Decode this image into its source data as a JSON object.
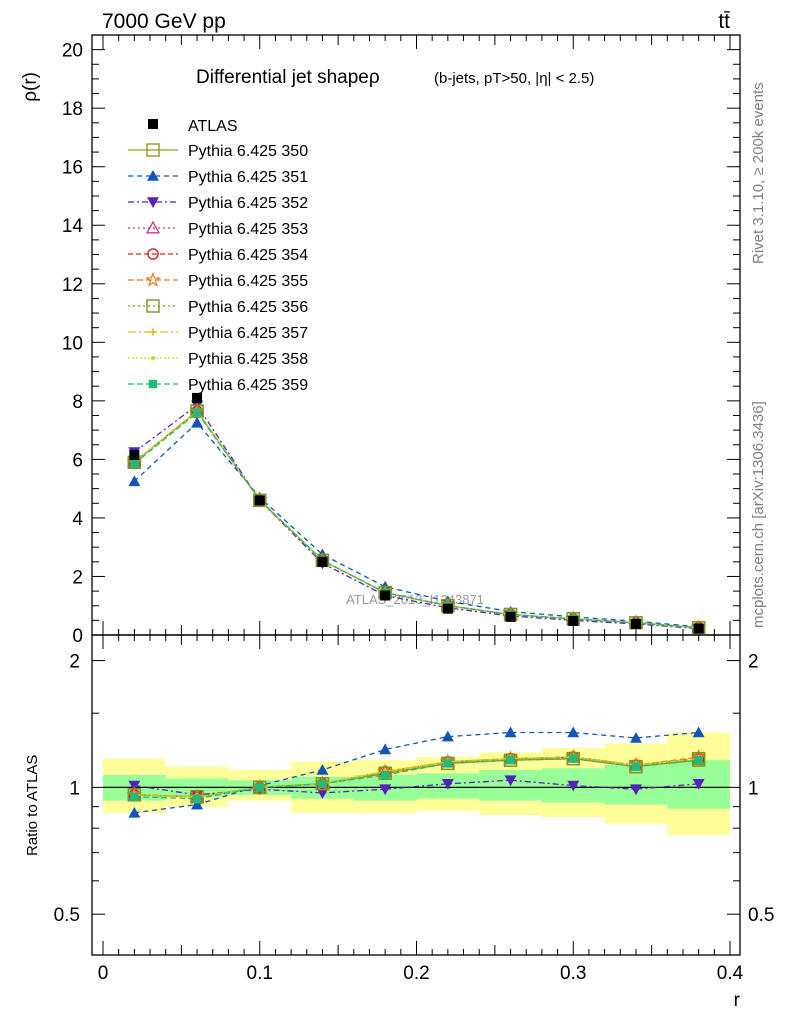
{
  "header": {
    "left": "7000 GeV pp",
    "right": "tt̄"
  },
  "side_labels": {
    "rivet": "Rivet 3.1.10, ≥ 200k events",
    "source": "mcplots.cern.ch [arXiv:1306.3436]"
  },
  "chart_data": [
    {
      "type": "line",
      "title": "Differential jet shapeρ",
      "title_detail": "(b-jets, pT>50, |η| < 2.5)",
      "ylabel": "ρ(r)",
      "xlabel": "r",
      "watermark": "ATLAS_2013_I1243871",
      "xlim": [
        0,
        0.4
      ],
      "ylim": [
        0,
        20.5
      ],
      "x_ticks": [
        "0",
        "0.1",
        "0.2",
        "0.3",
        "0.4"
      ],
      "y_ticks": [
        "0",
        "2",
        "4",
        "6",
        "8",
        "10",
        "12",
        "14",
        "16",
        "18",
        "20"
      ],
      "legend_position": "top-left",
      "x": [
        0.02,
        0.06,
        0.1,
        0.14,
        0.18,
        0.22,
        0.26,
        0.3,
        0.34,
        0.38
      ],
      "data": {
        "name": "ATLAS",
        "values": [
          6.15,
          8.1,
          4.6,
          2.5,
          1.35,
          0.9,
          0.62,
          0.48,
          0.38,
          0.22
        ]
      },
      "series": [
        {
          "name": "Pythia 6.425 350",
          "color": "#999922",
          "values": [
            5.9,
            7.65,
            4.6,
            2.55,
            1.45,
            1.0,
            0.7,
            0.55,
            0.42,
            0.25
          ]
        },
        {
          "name": "Pythia 6.425 351",
          "color": "#1155bb",
          "values": [
            5.25,
            7.25,
            4.7,
            2.75,
            1.65,
            1.15,
            0.8,
            0.62,
            0.47,
            0.28
          ]
        },
        {
          "name": "Pythia 6.425 352",
          "color": "#5522bb",
          "values": [
            6.25,
            7.85,
            4.6,
            2.45,
            1.35,
            0.93,
            0.65,
            0.5,
            0.38,
            0.22
          ]
        },
        {
          "name": "Pythia 6.425 353",
          "color": "#cc3399",
          "values": [
            5.9,
            7.65,
            4.6,
            2.55,
            1.45,
            1.0,
            0.7,
            0.55,
            0.42,
            0.25
          ]
        },
        {
          "name": "Pythia 6.425 354",
          "color": "#dd2222",
          "values": [
            5.9,
            7.65,
            4.6,
            2.55,
            1.45,
            1.0,
            0.7,
            0.55,
            0.42,
            0.25
          ]
        },
        {
          "name": "Pythia 6.425 355",
          "color": "#ee7722",
          "values": [
            5.9,
            7.65,
            4.6,
            2.55,
            1.45,
            1.0,
            0.7,
            0.55,
            0.42,
            0.25
          ]
        },
        {
          "name": "Pythia 6.425 356",
          "color": "#779922",
          "values": [
            5.9,
            7.65,
            4.6,
            2.55,
            1.45,
            1.0,
            0.7,
            0.55,
            0.42,
            0.25
          ]
        },
        {
          "name": "Pythia 6.425 357",
          "color": "#ddbb11",
          "values": [
            5.9,
            7.65,
            4.6,
            2.55,
            1.45,
            1.0,
            0.7,
            0.55,
            0.42,
            0.25
          ]
        },
        {
          "name": "Pythia 6.425 358",
          "color": "#bbdd11",
          "values": [
            5.9,
            7.65,
            4.6,
            2.55,
            1.45,
            1.0,
            0.7,
            0.55,
            0.42,
            0.25
          ]
        },
        {
          "name": "Pythia 6.425 359",
          "color": "#22bb77",
          "values": [
            5.85,
            7.6,
            4.62,
            2.55,
            1.45,
            1.0,
            0.7,
            0.55,
            0.42,
            0.25
          ]
        }
      ]
    },
    {
      "type": "line",
      "ylabel": "Ratio to ATLAS",
      "xlabel": "r",
      "xlim": [
        0,
        0.4
      ],
      "ylim": [
        0.4,
        2.3
      ],
      "yscale": "log",
      "y_ticks": [
        "0.5",
        "1",
        "2"
      ],
      "x_ticks": [
        "0",
        "0.1",
        "0.2",
        "0.3",
        "0.4"
      ],
      "bin_edges": [
        0,
        0.04,
        0.08,
        0.12,
        0.16,
        0.2,
        0.24,
        0.28,
        0.32,
        0.36,
        0.4
      ],
      "band_inner": {
        "color": "#99ff99",
        "low": [
          0.93,
          0.95,
          0.96,
          0.94,
          0.93,
          0.94,
          0.93,
          0.92,
          0.91,
          0.89
        ],
        "high": [
          1.07,
          1.05,
          1.04,
          1.06,
          1.07,
          1.08,
          1.1,
          1.11,
          1.13,
          1.16
        ]
      },
      "band_outer": {
        "color": "#ffff99",
        "low": [
          0.87,
          0.9,
          0.93,
          0.87,
          0.87,
          0.88,
          0.86,
          0.85,
          0.82,
          0.77
        ],
        "high": [
          1.17,
          1.12,
          1.1,
          1.15,
          1.16,
          1.18,
          1.21,
          1.24,
          1.27,
          1.35
        ]
      },
      "series": [
        {
          "name": "Pythia 6.425 350",
          "values": [
            0.96,
            0.95,
            1.0,
            1.02,
            1.08,
            1.14,
            1.16,
            1.17,
            1.12,
            1.16
          ]
        },
        {
          "name": "Pythia 6.425 351",
          "values": [
            0.87,
            0.91,
            1.01,
            1.1,
            1.23,
            1.32,
            1.35,
            1.35,
            1.31,
            1.35
          ]
        },
        {
          "name": "Pythia 6.425 352",
          "values": [
            1.01,
            0.96,
            0.99,
            0.97,
            0.99,
            1.02,
            1.04,
            1.01,
            0.99,
            1.02
          ]
        },
        {
          "name": "Pythia 6.425 353",
          "values": [
            0.96,
            0.95,
            1.0,
            1.02,
            1.09,
            1.15,
            1.17,
            1.18,
            1.13,
            1.17
          ]
        },
        {
          "name": "Pythia 6.425 354",
          "values": [
            0.96,
            0.95,
            1.0,
            1.02,
            1.09,
            1.15,
            1.17,
            1.18,
            1.13,
            1.17
          ]
        },
        {
          "name": "Pythia 6.425 355",
          "values": [
            0.96,
            0.95,
            1.0,
            1.02,
            1.09,
            1.15,
            1.17,
            1.18,
            1.13,
            1.18
          ]
        },
        {
          "name": "Pythia 6.425 356",
          "values": [
            0.96,
            0.95,
            1.0,
            1.02,
            1.08,
            1.14,
            1.16,
            1.17,
            1.12,
            1.17
          ]
        },
        {
          "name": "Pythia 6.425 357",
          "values": [
            0.96,
            0.95,
            1.0,
            1.02,
            1.09,
            1.15,
            1.17,
            1.18,
            1.13,
            1.17
          ]
        },
        {
          "name": "Pythia 6.425 358",
          "values": [
            0.96,
            0.95,
            1.0,
            1.02,
            1.09,
            1.15,
            1.17,
            1.18,
            1.13,
            1.17
          ]
        },
        {
          "name": "Pythia 6.425 359",
          "values": [
            0.95,
            0.94,
            1.0,
            1.02,
            1.07,
            1.14,
            1.16,
            1.17,
            1.12,
            1.16
          ]
        }
      ]
    }
  ]
}
